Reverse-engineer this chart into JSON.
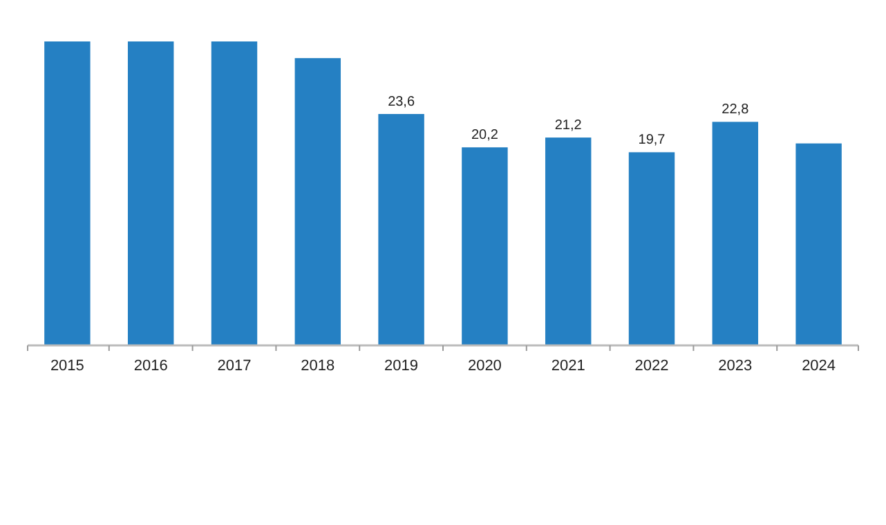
{
  "chart_data": {
    "type": "bar",
    "categories": [
      "2015",
      "2016",
      "2017",
      "2018",
      "2019",
      "2020",
      "2021",
      "2022",
      "2023",
      "2024"
    ],
    "values": [
      31,
      31,
      31,
      29.3,
      23.6,
      20.2,
      21.2,
      19.7,
      22.8,
      20.6
    ],
    "value_labels": [
      null,
      null,
      null,
      null,
      "23,6",
      "20,2",
      "21,2",
      "19,7",
      "22,8",
      null
    ],
    "color": "#2580c3"
  }
}
